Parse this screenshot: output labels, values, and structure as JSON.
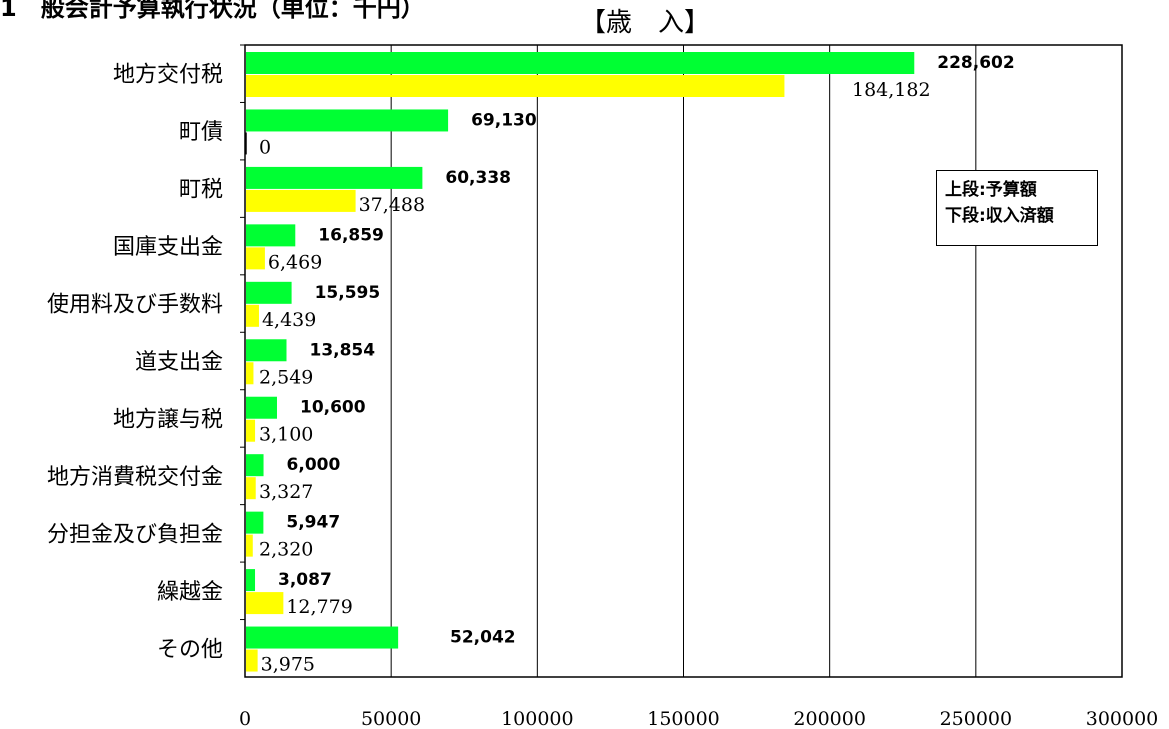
{
  "header": {
    "title_partial": "1　般会計予算執行状況（単位：千円）"
  },
  "chart_data": {
    "type": "bar",
    "orientation": "horizontal",
    "title": "【歳　入】",
    "categories": [
      "地方交付税",
      "町債",
      "町税",
      "国庫支出金",
      "使用料及び手数料",
      "道支出金",
      "地方譲与税",
      "地方消費税交付金",
      "分担金及び負担金",
      "繰越金",
      "その他"
    ],
    "series": [
      {
        "name": "上段:予算額",
        "color": "#00ff33",
        "values": [
          228602,
          69130,
          60338,
          16859,
          15595,
          13854,
          10600,
          6000,
          5947,
          3087,
          52042
        ],
        "labels": [
          "228,602",
          "69,130",
          "60,338",
          "16,859",
          "15,595",
          "13,854",
          "10,600",
          "6,000",
          "5,947",
          "3,087",
          "52,042"
        ]
      },
      {
        "name": "下段:収入済額",
        "color": "#ffff00",
        "values": [
          184182,
          0,
          37488,
          6469,
          4439,
          2549,
          3100,
          3327,
          2320,
          12779,
          3975
        ],
        "labels": [
          "184,182",
          "0",
          "37,488",
          "6,469",
          "4,439",
          "2,549",
          "3,100",
          "3,327",
          "2,320",
          "12,779",
          "3,975"
        ]
      }
    ],
    "xlim": [
      0,
      300000
    ],
    "xticks": [
      "0",
      "50000",
      "100000",
      "150000",
      "200000",
      "250000",
      "300000"
    ],
    "grid": true,
    "legend_position": "right",
    "legend_lines": [
      "上段:予算額",
      "下段:収入済額"
    ]
  }
}
